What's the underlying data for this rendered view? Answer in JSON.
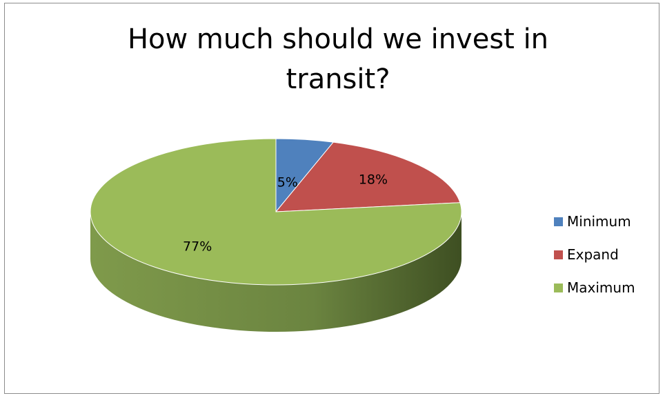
{
  "chart_data": {
    "type": "pie",
    "title_lines": [
      "How much should we invest in",
      "transit?"
    ],
    "categories": [
      "Minimum",
      "Expand",
      "Maximum"
    ],
    "values": [
      5,
      18,
      77
    ],
    "data_labels": [
      "5%",
      "18%",
      "77%"
    ],
    "colors": [
      "#4f81bd",
      "#c0504d",
      "#9bbb59"
    ],
    "style": "3d",
    "legend_position": "right"
  }
}
